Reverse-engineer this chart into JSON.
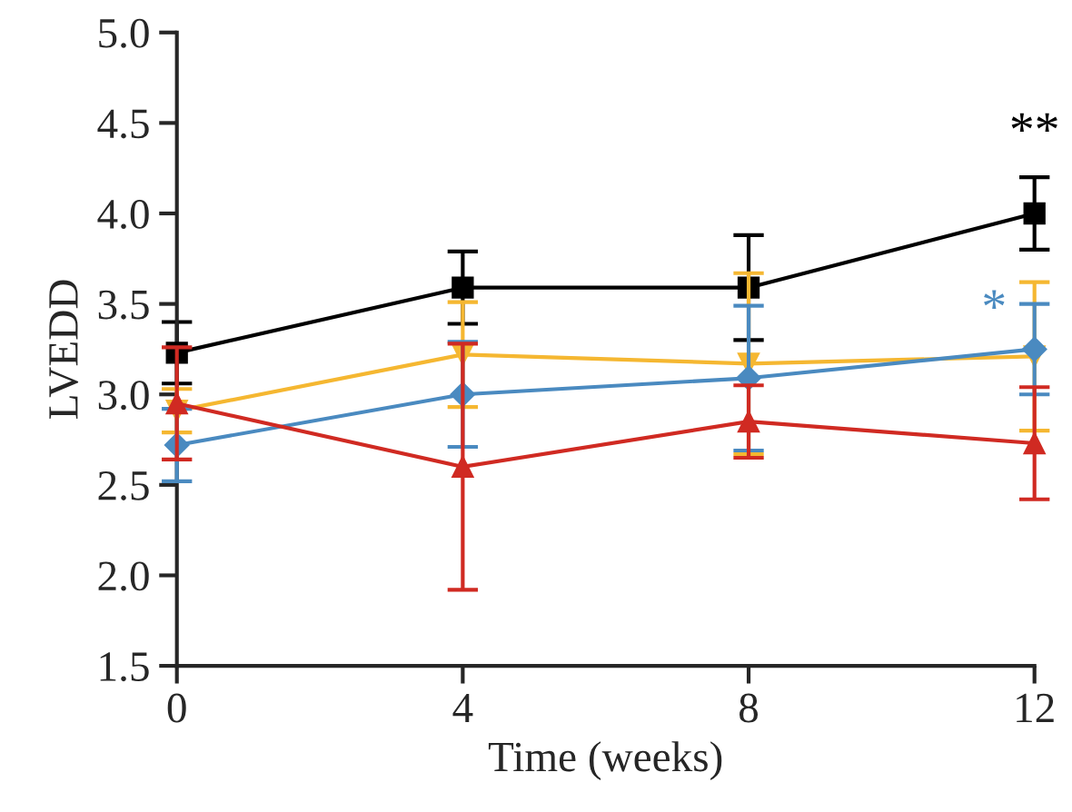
{
  "chart_data": {
    "type": "line",
    "xlabel": "Time (weeks)",
    "ylabel": "LVEDD",
    "x": [
      0,
      4,
      8,
      12
    ],
    "xlim": [
      0,
      12
    ],
    "xticks": [
      0,
      4,
      8,
      12
    ],
    "ylim": [
      1.5,
      5.0
    ],
    "yticks": [
      {
        "value": 1.5,
        "label": "1.5"
      },
      {
        "value": 2.0,
        "label": "2.0"
      },
      {
        "value": 2.5,
        "label": "2.5"
      },
      {
        "value": 3.0,
        "label": "3.0"
      },
      {
        "value": 3.5,
        "label": "3.5"
      },
      {
        "value": 4.0,
        "label": "4.0"
      },
      {
        "value": 4.5,
        "label": "4.5"
      },
      {
        "value": 5.0,
        "label": "5.0"
      }
    ],
    "grid": false,
    "legend": false,
    "line_style": "solid",
    "series": [
      {
        "color": "#000000",
        "marker": "square",
        "values": [
          3.23,
          3.59,
          3.59,
          4.0
        ],
        "errors": [
          0.17,
          0.2,
          0.29,
          0.2
        ]
      },
      {
        "color": "#f5b731",
        "marker": "triangle_down",
        "values": [
          2.91,
          3.22,
          3.17,
          3.21
        ],
        "errors": [
          0.12,
          0.29,
          0.5,
          0.41
        ]
      },
      {
        "color": "#4a8ac0",
        "marker": "diamond",
        "values": [
          2.72,
          3.0,
          3.09,
          3.25
        ],
        "errors": [
          0.2,
          0.29,
          0.4,
          0.25
        ]
      },
      {
        "color": "#d02a22",
        "marker": "triangle",
        "values": [
          2.95,
          2.6,
          2.85,
          2.73
        ],
        "errors": [
          0.31,
          0.68,
          0.2,
          0.31
        ]
      }
    ],
    "annotations": [
      {
        "text": "**",
        "x": 12,
        "y": 4.0
      },
      {
        "text": "*",
        "x": 12,
        "y": 3.25
      }
    ]
  }
}
